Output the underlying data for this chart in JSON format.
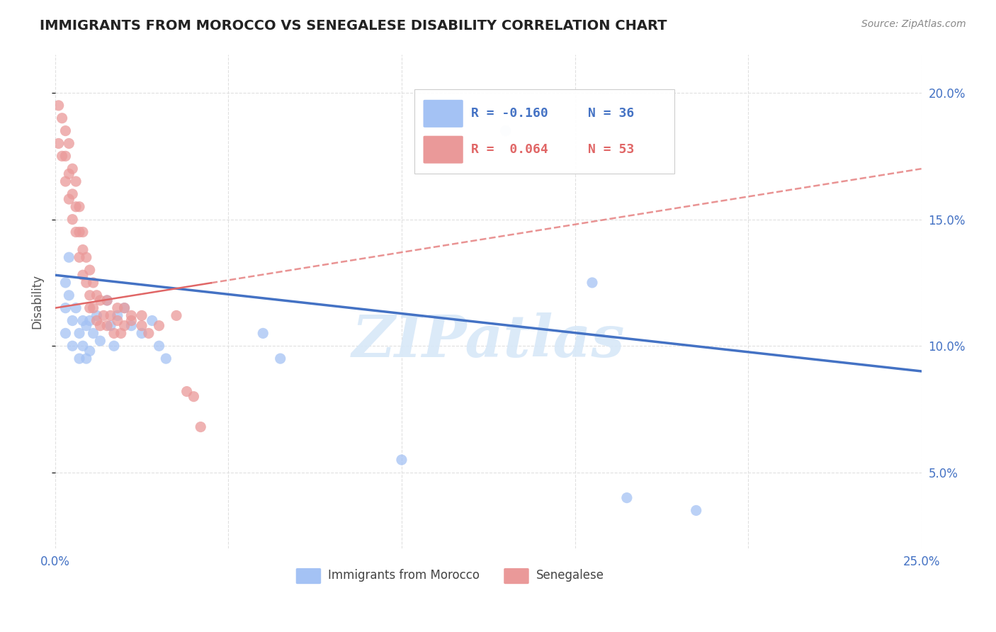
{
  "title": "IMMIGRANTS FROM MOROCCO VS SENEGALESE DISABILITY CORRELATION CHART",
  "source": "Source: ZipAtlas.com",
  "ylabel": "Disability",
  "xlim": [
    0.0,
    0.25
  ],
  "ylim": [
    0.02,
    0.215
  ],
  "color_morocco": "#a4c2f4",
  "color_senegalese": "#ea9999",
  "trend_color_morocco": "#4472c4",
  "trend_color_senegalese": "#e06666",
  "watermark": "ZIPatlas",
  "legend_r1": "R = -0.160",
  "legend_n1": "N = 36",
  "legend_r2": "R =  0.064",
  "legend_n2": "N = 53",
  "morocco_x": [
    0.003,
    0.003,
    0.003,
    0.004,
    0.004,
    0.005,
    0.005,
    0.006,
    0.007,
    0.007,
    0.008,
    0.008,
    0.009,
    0.009,
    0.01,
    0.01,
    0.011,
    0.012,
    0.013,
    0.015,
    0.016,
    0.017,
    0.018,
    0.02,
    0.022,
    0.025,
    0.028,
    0.03,
    0.032,
    0.06,
    0.065,
    0.1,
    0.155,
    0.165,
    0.185,
    0.13
  ],
  "morocco_y": [
    0.125,
    0.115,
    0.105,
    0.135,
    0.12,
    0.11,
    0.1,
    0.115,
    0.105,
    0.095,
    0.11,
    0.1,
    0.108,
    0.095,
    0.11,
    0.098,
    0.105,
    0.112,
    0.102,
    0.118,
    0.108,
    0.1,
    0.112,
    0.115,
    0.108,
    0.105,
    0.11,
    0.1,
    0.095,
    0.105,
    0.095,
    0.055,
    0.125,
    0.04,
    0.035,
    0.185
  ],
  "senegalese_x": [
    0.001,
    0.001,
    0.002,
    0.002,
    0.003,
    0.003,
    0.003,
    0.004,
    0.004,
    0.004,
    0.005,
    0.005,
    0.005,
    0.006,
    0.006,
    0.006,
    0.007,
    0.007,
    0.007,
    0.008,
    0.008,
    0.008,
    0.009,
    0.009,
    0.01,
    0.01,
    0.01,
    0.011,
    0.011,
    0.012,
    0.012,
    0.013,
    0.013,
    0.014,
    0.015,
    0.015,
    0.016,
    0.017,
    0.018,
    0.019,
    0.02,
    0.022,
    0.025,
    0.027,
    0.03,
    0.035,
    0.038,
    0.04,
    0.042,
    0.018,
    0.02,
    0.022,
    0.025
  ],
  "senegalese_y": [
    0.195,
    0.18,
    0.19,
    0.175,
    0.185,
    0.175,
    0.165,
    0.18,
    0.168,
    0.158,
    0.17,
    0.16,
    0.15,
    0.165,
    0.155,
    0.145,
    0.155,
    0.145,
    0.135,
    0.145,
    0.138,
    0.128,
    0.135,
    0.125,
    0.13,
    0.12,
    0.115,
    0.125,
    0.115,
    0.12,
    0.11,
    0.118,
    0.108,
    0.112,
    0.118,
    0.108,
    0.112,
    0.105,
    0.11,
    0.105,
    0.108,
    0.11,
    0.108,
    0.105,
    0.108,
    0.112,
    0.082,
    0.08,
    0.068,
    0.115,
    0.115,
    0.112,
    0.112
  ]
}
